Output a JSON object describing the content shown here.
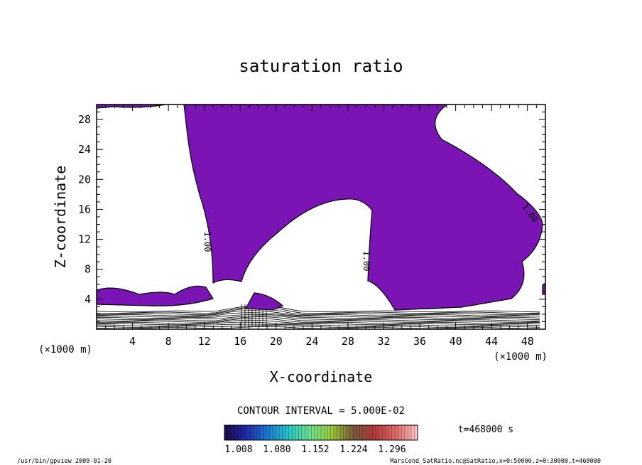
{
  "chart_data": {
    "type": "contour",
    "title": "saturation ratio",
    "xlabel": "X-coordinate",
    "ylabel": "Z-coordinate",
    "x_unit": "(×1000 m)",
    "z_unit": "(×1000 m)",
    "xlim": [
      0,
      50
    ],
    "ylim": [
      0,
      30
    ],
    "x_ticks": [
      4,
      8,
      12,
      16,
      20,
      24,
      28,
      32,
      36,
      40,
      44,
      48
    ],
    "y_ticks": [
      4,
      8,
      12,
      16,
      20,
      24,
      28
    ],
    "contour_level_label": "1.00",
    "contour_interval_text": "CONTOUR INTERVAL = 5.000E-02",
    "time_text": "t=468000 s",
    "colorbar": {
      "ticks": [
        "1.008",
        "1.080",
        "1.152",
        "1.224",
        "1.296"
      ],
      "colors": [
        "#1a0a4a",
        "#1f2aa8",
        "#1e78d2",
        "#28c8c8",
        "#6ee08c",
        "#9ac83a",
        "#7a5a3a",
        "#b43a3a",
        "#e06a6a",
        "#ffc8c8"
      ]
    },
    "fill_color": "#7a14b4",
    "grid": false
  },
  "footer": {
    "left": "/usr/bin/gpview   2009-01-26",
    "right": "MarsCond_SatRatio.nc@SatRatio,x=0:50000,z=0:30000,t=468000"
  }
}
